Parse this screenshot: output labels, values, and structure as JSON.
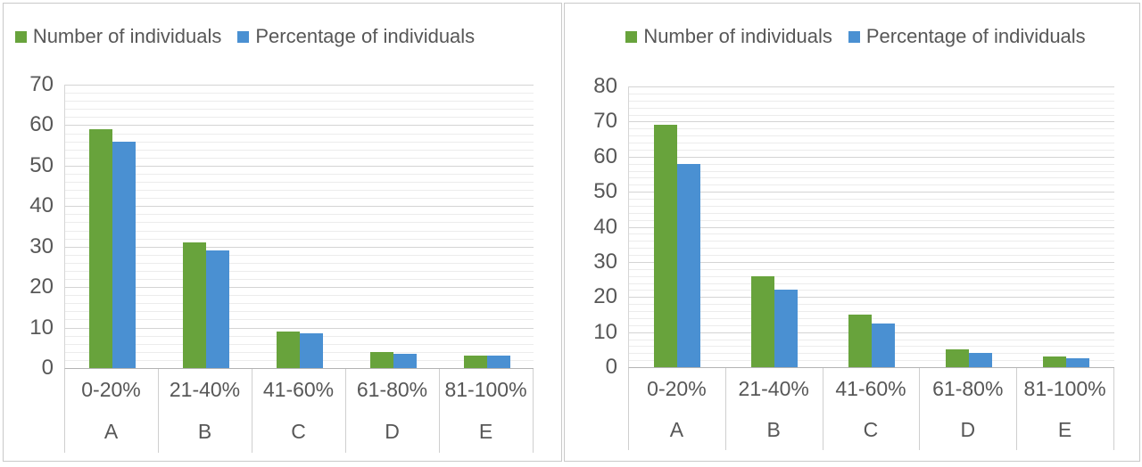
{
  "colors": {
    "series_number": "#68a33c",
    "series_percentage": "#4a90d2",
    "text": "#575757",
    "gridline_major": "#d4d4d4",
    "gridline_minor": "#ececec",
    "axis_line": "#b3b3b3",
    "separator": "#cfcfcf",
    "panel_border": "#c9c9c9"
  },
  "chart_data": [
    {
      "type": "bar",
      "title": "",
      "legend_position": "top",
      "grid": true,
      "ylim": [
        0,
        70
      ],
      "y_major_step": 10,
      "y_minor_step": 2,
      "y_tick_labels": [
        "0",
        "10",
        "20",
        "30",
        "40",
        "50",
        "60",
        "70"
      ],
      "categories": [
        "0-20%",
        "21-40%",
        "41-60%",
        "61-80%",
        "81-100%"
      ],
      "category_group_labels": [
        "A",
        "B",
        "C",
        "D",
        "E"
      ],
      "series": [
        {
          "name": "Number of individuals",
          "color_key": "series_number",
          "values": [
            59,
            31,
            9,
            4,
            3
          ]
        },
        {
          "name": "Percentage of individuals",
          "color_key": "series_percentage",
          "values": [
            56,
            29,
            8.5,
            3.5,
            3
          ]
        }
      ]
    },
    {
      "type": "bar",
      "title": "",
      "legend_position": "top",
      "grid": true,
      "ylim": [
        0,
        80
      ],
      "y_major_step": 10,
      "y_minor_step": 2,
      "y_tick_labels": [
        "0",
        "10",
        "20",
        "30",
        "40",
        "50",
        "60",
        "70",
        "80"
      ],
      "categories": [
        "0-20%",
        "21-40%",
        "41-60%",
        "61-80%",
        "81-100%"
      ],
      "category_group_labels": [
        "A",
        "B",
        "C",
        "D",
        "E"
      ],
      "series": [
        {
          "name": "Number of individuals",
          "color_key": "series_number",
          "values": [
            69,
            26,
            15,
            5,
            3
          ]
        },
        {
          "name": "Percentage of individuals",
          "color_key": "series_percentage",
          "values": [
            58,
            22,
            12.5,
            4,
            2.5
          ]
        }
      ]
    }
  ]
}
